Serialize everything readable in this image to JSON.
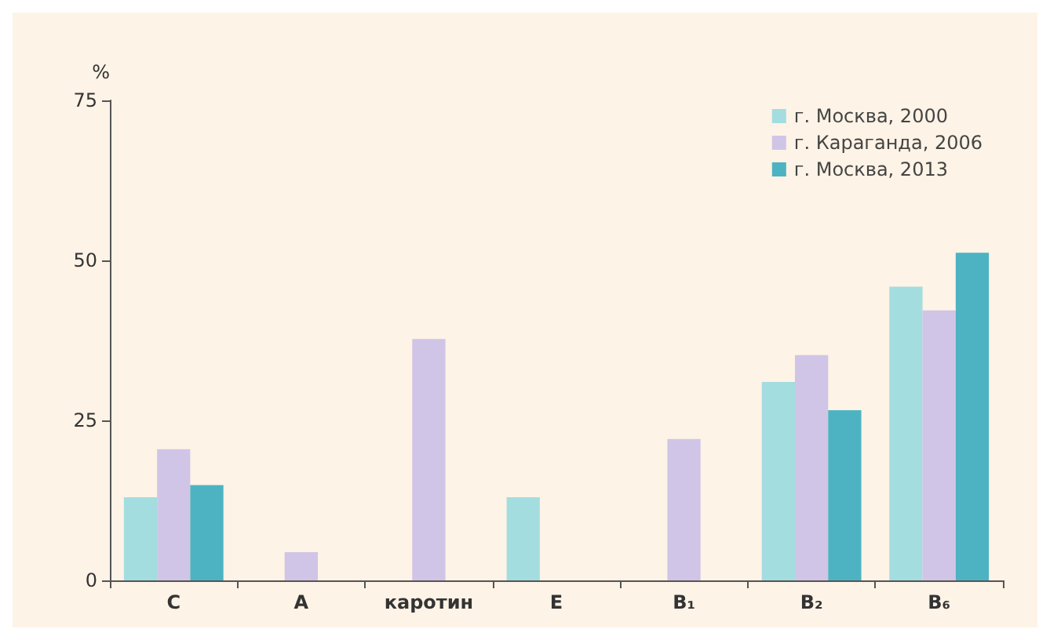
{
  "chart_data": {
    "type": "bar",
    "ylabel": "%",
    "categories": [
      "C",
      "A",
      "каротин",
      "E",
      "B₁",
      "B₂",
      "B₆"
    ],
    "series": [
      {
        "name": "г. Москва, 2000",
        "color": "#a3dde0",
        "values": [
          13.0,
          null,
          null,
          13.0,
          null,
          31.0,
          45.9
        ]
      },
      {
        "name": "г. Караганда, 2006",
        "color": "#d0c5e6",
        "values": [
          20.5,
          4.4,
          37.7,
          null,
          22.1,
          35.2,
          42.2
        ]
      },
      {
        "name": "г. Москва, 2013",
        "color": "#4db3c2",
        "values": [
          14.9,
          null,
          null,
          null,
          null,
          26.6,
          51.2
        ]
      }
    ],
    "ylim": [
      0,
      75
    ],
    "yticks": [
      0,
      25,
      50,
      75
    ],
    "grid": false,
    "legend": "top right"
  }
}
